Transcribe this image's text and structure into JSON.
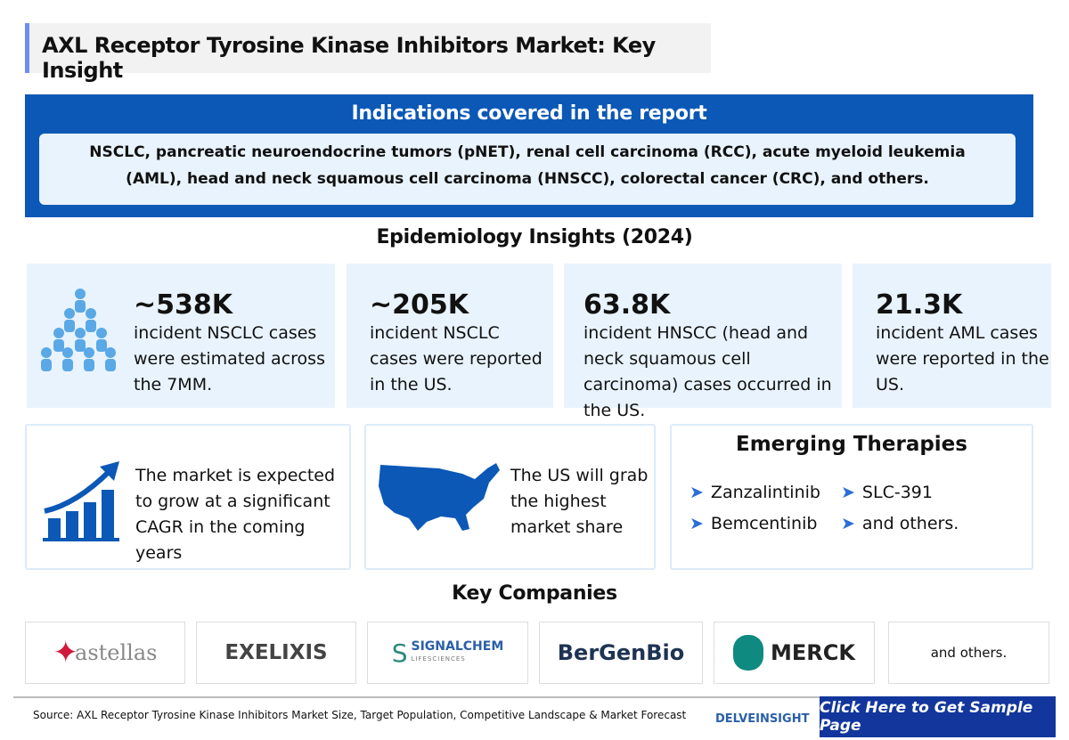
{
  "title": "AXL Receptor Tyrosine Kinase Inhibitors Market: Key Insight",
  "indications": {
    "heading": "Indications covered in the report",
    "text": "NSCLC, pancreatic neuroendocrine tumors (pNET), renal cell carcinoma (RCC), acute myeloid leukemia (AML), head and neck squamous cell carcinoma (HNSCC), colorectal cancer (CRC), and others."
  },
  "epidemiology": {
    "heading": "Epidemiology Insights (2024)",
    "cards": [
      {
        "value": "~538K",
        "text": "incident NSCLC cases were estimated across the 7MM."
      },
      {
        "value": "~205K",
        "text": "incident NSCLC cases were reported in the US."
      },
      {
        "value": "63.8K",
        "text": "incident HNSCC (head and neck squamous cell carcinoma) cases occurred in the US."
      },
      {
        "value": "21.3K",
        "text": "incident AML cases were reported in the US."
      }
    ]
  },
  "market": {
    "growth": "The market is expected to grow at a significant CAGR in the coming years",
    "us": "The US will grab the highest market share"
  },
  "therapies": {
    "heading": "Emerging Therapies",
    "items": [
      "Zanzalintinib",
      "SLC-391",
      "Bemcentinib",
      "and others."
    ]
  },
  "companies": {
    "heading": "Key Companies",
    "logos": [
      "astellas",
      "EXELIXIS",
      "SIGNALCHEM",
      "BerGenBio",
      "MERCK"
    ],
    "signalchem_sub": "LIFESCIENCES",
    "others": "and others."
  },
  "footer": {
    "source": "Source: AXL Receptor Tyrosine Kinase Inhibitors Market Size, Target Population, Competitive Landscape & Market Forecast",
    "brand": "DELVEINSIGHT",
    "cta": "Click Here to Get Sample Page"
  },
  "colors": {
    "primary": "#0b58b6",
    "card": "#e8f3fd",
    "cta": "#12369c"
  }
}
